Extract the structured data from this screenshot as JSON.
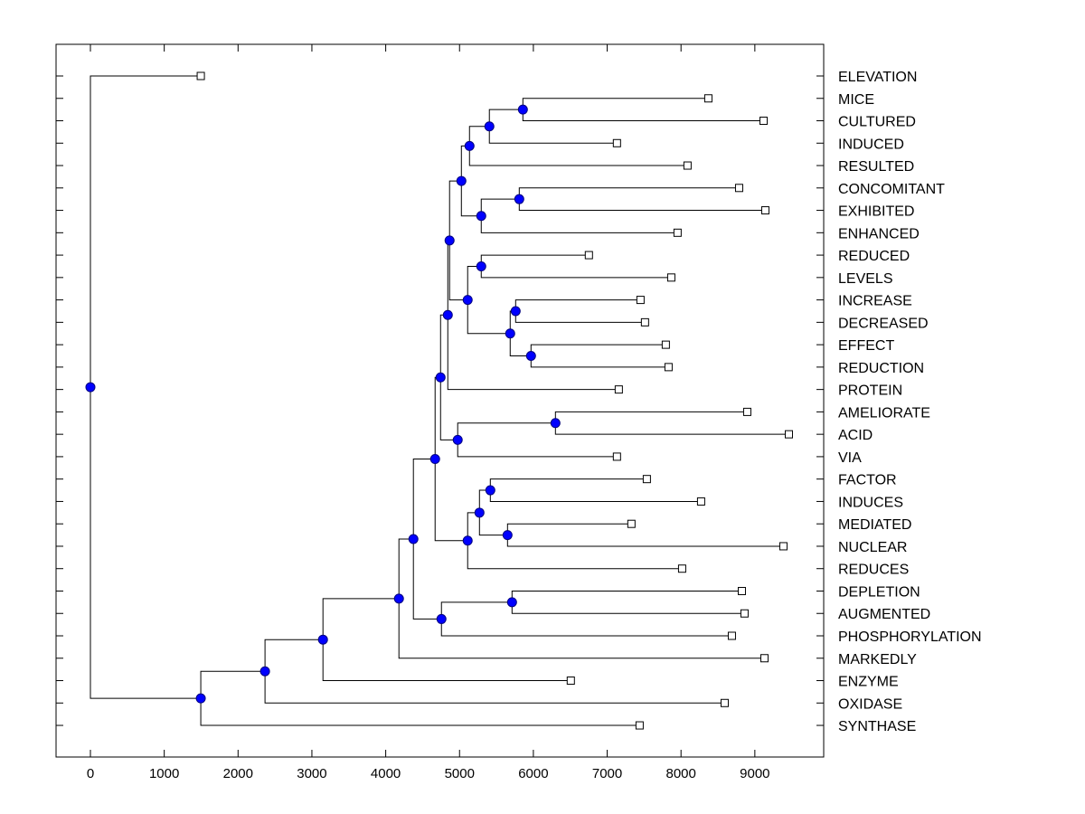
{
  "chart_data": {
    "type": "dendrogram",
    "title": "",
    "xlabel": "",
    "ylabel": "",
    "xlim": [
      -450,
      9950
    ],
    "x_ticks": [
      0,
      1000,
      2000,
      3000,
      4000,
      5000,
      6000,
      7000,
      8000,
      9000
    ],
    "x_tick_labels": [
      "0",
      "1000",
      "2000",
      "3000",
      "4000",
      "5000",
      "6000",
      "7000",
      "8000",
      "9000"
    ],
    "grid": false,
    "leaf_marker": "open-square",
    "node_marker": "filled-circle",
    "colors": {
      "node_fill": "#0000ff",
      "node_stroke": "#000080",
      "line": "#000000",
      "leaf_fill": "#ffffff"
    },
    "leaves": [
      {
        "id": "ELEVATION",
        "label": "ELEVATION",
        "value": 1495
      },
      {
        "id": "MICE",
        "label": "MICE",
        "value": 8370
      },
      {
        "id": "CULTURED",
        "label": "CULTURED",
        "value": 9118
      },
      {
        "id": "INDUCED",
        "label": "INDUCED",
        "value": 7132
      },
      {
        "id": "RESULTED",
        "label": "RESULTED",
        "value": 8088
      },
      {
        "id": "CONCOMITANT",
        "label": "CONCOMITANT",
        "value": 8787
      },
      {
        "id": "EXHIBITED",
        "label": "EXHIBITED",
        "value": 9142
      },
      {
        "id": "ENHANCED",
        "label": "ENHANCED",
        "value": 7953
      },
      {
        "id": "REDUCED",
        "label": "REDUCED",
        "value": 6752
      },
      {
        "id": "LEVELS",
        "label": "LEVELS",
        "value": 7868
      },
      {
        "id": "INCREASE",
        "label": "INCREASE",
        "value": 7451
      },
      {
        "id": "DECREASED",
        "label": "DECREASED",
        "value": 7512
      },
      {
        "id": "EFFECT",
        "label": "EFFECT",
        "value": 7794
      },
      {
        "id": "REDUCTION",
        "label": "REDUCTION",
        "value": 7831
      },
      {
        "id": "PROTEIN",
        "label": "PROTEIN",
        "value": 7157
      },
      {
        "id": "AMELIORATE",
        "label": "AMELIORATE",
        "value": 8897
      },
      {
        "id": "ACID",
        "label": "ACID",
        "value": 9461
      },
      {
        "id": "VIA",
        "label": "VIA",
        "value": 7132
      },
      {
        "id": "FACTOR",
        "label": "FACTOR",
        "value": 7537
      },
      {
        "id": "INDUCES",
        "label": "INDUCES",
        "value": 8272
      },
      {
        "id": "MEDIATED",
        "label": "MEDIATED",
        "value": 7328
      },
      {
        "id": "NUCLEAR",
        "label": "NUCLEAR",
        "value": 9387
      },
      {
        "id": "REDUCES",
        "label": "REDUCES",
        "value": 8015
      },
      {
        "id": "DEPLETION",
        "label": "DEPLETION",
        "value": 8824
      },
      {
        "id": "AUGMENTED",
        "label": "AUGMENTED",
        "value": 8860
      },
      {
        "id": "PHOSPHORYLATION",
        "label": "PHOSPHORYLATION",
        "value": 8689
      },
      {
        "id": "MARKEDLY",
        "label": "MARKEDLY",
        "value": 9130
      },
      {
        "id": "ENZYME",
        "label": "ENZYME",
        "value": 6507
      },
      {
        "id": "OXIDASE",
        "label": "OXIDASE",
        "value": 8591
      },
      {
        "id": "SYNTHASE",
        "label": "SYNTHASE",
        "value": 7439
      }
    ],
    "nodes": [
      {
        "id": "n_mice_cult",
        "value": 5858,
        "children": [
          "MICE",
          "CULTURED"
        ]
      },
      {
        "id": "n_a1",
        "value": 5404,
        "children": [
          "n_mice_cult",
          "INDUCED"
        ]
      },
      {
        "id": "n_a2",
        "value": 5135,
        "children": [
          "n_a1",
          "RESULTED"
        ]
      },
      {
        "id": "n_conc_exh",
        "value": 5809,
        "children": [
          "CONCOMITANT",
          "EXHIBITED"
        ]
      },
      {
        "id": "n_b1",
        "value": 5294,
        "children": [
          "n_conc_exh",
          "ENHANCED"
        ]
      },
      {
        "id": "n_ab",
        "value": 5025,
        "children": [
          "n_a2",
          "n_b1"
        ]
      },
      {
        "id": "n_red_lev",
        "value": 5294,
        "children": [
          "REDUCED",
          "LEVELS"
        ]
      },
      {
        "id": "n_inc_dec",
        "value": 5760,
        "children": [
          "INCREASE",
          "DECREASED"
        ]
      },
      {
        "id": "n_eff_redn",
        "value": 5968,
        "children": [
          "EFFECT",
          "REDUCTION"
        ]
      },
      {
        "id": "n_c1",
        "value": 5686,
        "children": [
          "n_inc_dec",
          "n_eff_redn"
        ]
      },
      {
        "id": "n_c2",
        "value": 5110,
        "children": [
          "n_red_lev",
          "n_c1"
        ]
      },
      {
        "id": "n_abc",
        "value": 4865,
        "children": [
          "n_ab",
          "n_c2"
        ]
      },
      {
        "id": "n_abcp",
        "value": 4841,
        "children": [
          "n_abc",
          "PROTEIN"
        ]
      },
      {
        "id": "n_amel_acid",
        "value": 6299,
        "children": [
          "AMELIORATE",
          "ACID"
        ]
      },
      {
        "id": "n_d1",
        "value": 4975,
        "children": [
          "n_amel_acid",
          "VIA"
        ]
      },
      {
        "id": "n_top",
        "value": 4743,
        "children": [
          "n_abcp",
          "n_d1"
        ]
      },
      {
        "id": "n_fac_ind",
        "value": 5417,
        "children": [
          "FACTOR",
          "INDUCES"
        ]
      },
      {
        "id": "n_med_nuc",
        "value": 5650,
        "children": [
          "MEDIATED",
          "NUCLEAR"
        ]
      },
      {
        "id": "n_e1",
        "value": 5270,
        "children": [
          "n_fac_ind",
          "n_med_nuc"
        ]
      },
      {
        "id": "n_e2",
        "value": 5110,
        "children": [
          "n_e1",
          "REDUCES"
        ]
      },
      {
        "id": "n_mid",
        "value": 4669,
        "children": [
          "n_top",
          "n_e2"
        ]
      },
      {
        "id": "n_dep_aug",
        "value": 5711,
        "children": [
          "DEPLETION",
          "AUGMENTED"
        ]
      },
      {
        "id": "n_f1",
        "value": 4755,
        "children": [
          "n_dep_aug",
          "PHOSPHORYLATION"
        ]
      },
      {
        "id": "n_g1",
        "value": 4375,
        "children": [
          "n_mid",
          "n_f1"
        ]
      },
      {
        "id": "n_g2",
        "value": 4179,
        "children": [
          "n_g1",
          "MARKEDLY"
        ]
      },
      {
        "id": "n_g3",
        "value": 3150,
        "children": [
          "n_g2",
          "ENZYME"
        ]
      },
      {
        "id": "n_g4",
        "value": 2365,
        "children": [
          "n_g3",
          "OXIDASE"
        ]
      },
      {
        "id": "n_g5",
        "value": 1495,
        "children": [
          "n_g4",
          "SYNTHASE"
        ]
      },
      {
        "id": "n_root",
        "value": 0,
        "children": [
          "ELEVATION",
          "n_g5"
        ]
      }
    ]
  }
}
